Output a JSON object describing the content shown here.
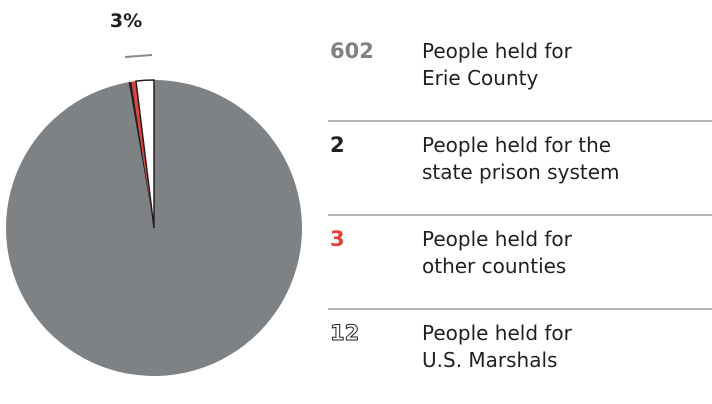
{
  "chart_data": {
    "type": "pie",
    "slices": [
      {
        "value": 602,
        "label": "People held for Erie County",
        "color": "#7f8285",
        "display": "602"
      },
      {
        "value": 2,
        "label": "People held for the state prison system",
        "color": "#231f20",
        "display": "2"
      },
      {
        "value": 3,
        "label": "People held for other counties",
        "color": "#e2413a",
        "display": "3"
      },
      {
        "value": 12,
        "label": "People held for U.S. Marshals",
        "color": "#ffffff",
        "display": "12"
      }
    ],
    "annotation": "3%"
  },
  "legend": [
    {
      "num": "602",
      "line1": "People held for",
      "line2": "Erie County",
      "num_color": "#7f8285"
    },
    {
      "num": "2",
      "line1": "People held for the",
      "line2": "state prison system",
      "num_color": "#231f20"
    },
    {
      "num": "3",
      "line1": "People held for",
      "line2": "other counties",
      "num_color": "#e2413a"
    },
    {
      "num": "12",
      "line1": "People held for",
      "line2": "U.S. Marshals",
      "num_color": "#ffffff"
    }
  ]
}
